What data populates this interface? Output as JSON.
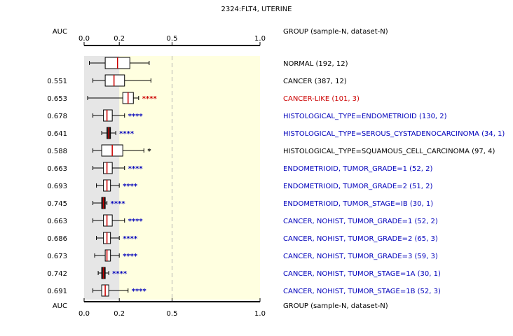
{
  "chart_data": {
    "type": "boxplot",
    "title": "2324:FLT4, UTERINE",
    "auc_header": "AUC",
    "group_header": "GROUP (sample-N, dataset-N)",
    "x_ticks": [
      0.0,
      0.2,
      0.5,
      1.0
    ],
    "x_tick_labels": [
      "0.0",
      "0.2",
      "0.5",
      "1.0"
    ],
    "xlim": [
      0.0,
      1.0
    ],
    "reference_line": 0.5,
    "normal_band": [
      0.0,
      0.2
    ],
    "colors": {
      "normal_band": "#e6e6e6",
      "plot_bg": "#ffffe0",
      "box_fill": "#ffffff",
      "box_fill_dense": "#222222",
      "median": "#cc0000",
      "label_black": "#000000",
      "label_red": "#cc0000",
      "label_blue": "#0000bb"
    },
    "groups": [
      {
        "label": "NORMAL (192, 12)",
        "auc": "",
        "stars": "",
        "color": "label_black",
        "whisker_low": 0.03,
        "q1": 0.12,
        "median": 0.19,
        "q3": 0.26,
        "whisker_high": 0.37
      },
      {
        "label": "CANCER (387, 12)",
        "auc": "0.551",
        "stars": "",
        "color": "label_black",
        "whisker_low": 0.05,
        "q1": 0.12,
        "median": 0.17,
        "q3": 0.23,
        "whisker_high": 0.38
      },
      {
        "label": "CANCER-LIKE (101, 3)",
        "auc": "0.653",
        "stars": "****",
        "color": "label_red",
        "whisker_low": 0.02,
        "q1": 0.22,
        "median": 0.25,
        "q3": 0.28,
        "whisker_high": 0.31
      },
      {
        "label": "HISTOLOGICAL_TYPE=ENDOMETRIOID (130, 2)",
        "auc": "0.678",
        "stars": "****",
        "color": "label_blue",
        "whisker_low": 0.05,
        "q1": 0.11,
        "median": 0.13,
        "q3": 0.16,
        "whisker_high": 0.23
      },
      {
        "label": "HISTOLOGICAL_TYPE=SEROUS_CYSTADENOCARCINOMA (34, 1)",
        "auc": "0.641",
        "stars": "****",
        "color": "label_blue",
        "whisker_low": 0.1,
        "q1": 0.13,
        "median": 0.14,
        "q3": 0.15,
        "whisker_high": 0.18
      },
      {
        "label": "HISTOLOGICAL_TYPE=SQUAMOUS_CELL_CARCINOMA (97, 4)",
        "auc": "0.588",
        "stars": "*",
        "color": "label_black",
        "whisker_low": 0.05,
        "q1": 0.1,
        "median": 0.16,
        "q3": 0.22,
        "whisker_high": 0.34
      },
      {
        "label": "ENDOMETRIOID, TUMOR_GRADE=1 (52, 2)",
        "auc": "0.663",
        "stars": "****",
        "color": "label_blue",
        "whisker_low": 0.05,
        "q1": 0.11,
        "median": 0.13,
        "q3": 0.16,
        "whisker_high": 0.23
      },
      {
        "label": "ENDOMETRIOID, TUMOR_GRADE=2 (51, 2)",
        "auc": "0.693",
        "stars": "****",
        "color": "label_blue",
        "whisker_low": 0.07,
        "q1": 0.11,
        "median": 0.13,
        "q3": 0.15,
        "whisker_high": 0.2
      },
      {
        "label": "ENDOMETRIOID, TUMOR_STAGE=IB (30, 1)",
        "auc": "0.745",
        "stars": "****",
        "color": "label_blue",
        "whisker_low": 0.05,
        "q1": 0.1,
        "median": 0.11,
        "q3": 0.12,
        "whisker_high": 0.13
      },
      {
        "label": "CANCER, NOHIST, TUMOR_GRADE=1 (52, 2)",
        "auc": "0.663",
        "stars": "****",
        "color": "label_blue",
        "whisker_low": 0.05,
        "q1": 0.11,
        "median": 0.13,
        "q3": 0.16,
        "whisker_high": 0.23
      },
      {
        "label": "CANCER, NOHIST, TUMOR_GRADE=2 (65, 3)",
        "auc": "0.686",
        "stars": "****",
        "color": "label_blue",
        "whisker_low": 0.07,
        "q1": 0.11,
        "median": 0.13,
        "q3": 0.15,
        "whisker_high": 0.2
      },
      {
        "label": "CANCER, NOHIST, TUMOR_GRADE=3 (59, 3)",
        "auc": "0.673",
        "stars": "****",
        "color": "label_blue",
        "whisker_low": 0.06,
        "q1": 0.12,
        "median": 0.13,
        "q3": 0.15,
        "whisker_high": 0.2
      },
      {
        "label": "CANCER, NOHIST, TUMOR_STAGE=1A (30, 1)",
        "auc": "0.742",
        "stars": "****",
        "color": "label_blue",
        "whisker_low": 0.08,
        "q1": 0.1,
        "median": 0.11,
        "q3": 0.12,
        "whisker_high": 0.14
      },
      {
        "label": "CANCER, NOHIST, TUMOR_STAGE=1B (52, 3)",
        "auc": "0.691",
        "stars": "****",
        "color": "label_blue",
        "whisker_low": 0.05,
        "q1": 0.1,
        "median": 0.12,
        "q3": 0.14,
        "whisker_high": 0.25
      }
    ]
  }
}
